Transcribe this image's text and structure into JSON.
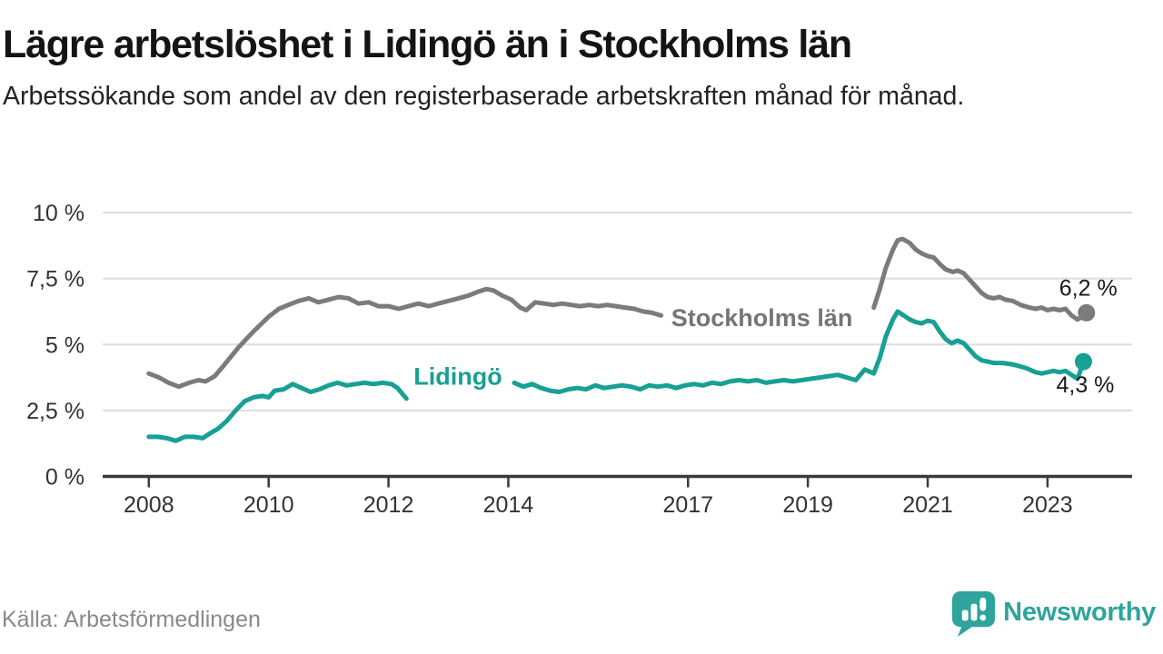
{
  "footer": {
    "source": "Källa: Arbetsförmedlingen",
    "brand": "Newsworthy"
  },
  "logo": {
    "icon": "bar-chart-speech-bubble",
    "color": "#2ea49c"
  },
  "chart_data": {
    "type": "line",
    "title": "Lägre arbetslöshet i Lidingö än i Stockholms län",
    "subtitle": "Arbetssökande som andel av den registerbaserade arbetskraften månad för månad.",
    "unit": "%",
    "xlabel": "",
    "ylabel": "",
    "ylim": [
      0,
      10
    ],
    "xlim": [
      2007.08,
      2024.42
    ],
    "grid": true,
    "legend_position": "inline-labels-on-lines",
    "colors": {
      "grid": "#dcdcdc",
      "axis": "#3a3a3a",
      "axis_text": "#333333",
      "end_label_text": "#1a1a1a",
      "background": "#ffffff"
    },
    "y_ticks": [
      {
        "value": 0,
        "label": "0 %"
      },
      {
        "value": 2.5,
        "label": "2,5 %"
      },
      {
        "value": 5,
        "label": "5 %"
      },
      {
        "value": 7.5,
        "label": "7,5 %"
      },
      {
        "value": 10,
        "label": "10 %"
      }
    ],
    "x_ticks": [
      {
        "year": 2008,
        "label": "2008"
      },
      {
        "year": 2010,
        "label": "2010"
      },
      {
        "year": 2012,
        "label": "2012"
      },
      {
        "year": 2014,
        "label": "2014"
      },
      {
        "year": 2017,
        "label": "2017"
      },
      {
        "year": 2019,
        "label": "2019"
      },
      {
        "year": 2021,
        "label": "2021"
      },
      {
        "year": 2023,
        "label": "2023"
      }
    ],
    "series": [
      {
        "name": "Stockholms län",
        "color": "#7b7b7b",
        "label_color": "#757575",
        "label_anchor": {
          "x": 2016.72,
          "y": 6.0
        },
        "end_label": {
          "text": "6,2 %",
          "value": 6.2,
          "position": "above"
        },
        "segments": [
          [
            [
              2008,
              3.9
            ],
            [
              2008.17,
              3.75
            ],
            [
              2008.33,
              3.55
            ],
            [
              2008.5,
              3.4
            ],
            [
              2008.67,
              3.55
            ],
            [
              2008.83,
              3.65
            ],
            [
              2008.95,
              3.6
            ],
            [
              2009.1,
              3.8
            ],
            [
              2009.25,
              4.2
            ],
            [
              2009.5,
              4.9
            ],
            [
              2009.75,
              5.5
            ],
            [
              2010,
              6.05
            ],
            [
              2010.17,
              6.35
            ],
            [
              2010.33,
              6.5
            ],
            [
              2010.5,
              6.65
            ],
            [
              2010.67,
              6.75
            ],
            [
              2010.83,
              6.6
            ],
            [
              2011,
              6.7
            ],
            [
              2011.17,
              6.8
            ],
            [
              2011.33,
              6.75
            ],
            [
              2011.5,
              6.55
            ],
            [
              2011.67,
              6.6
            ],
            [
              2011.83,
              6.45
            ],
            [
              2012,
              6.45
            ],
            [
              2012.17,
              6.35
            ],
            [
              2012.33,
              6.45
            ],
            [
              2012.5,
              6.55
            ],
            [
              2012.67,
              6.45
            ],
            [
              2012.83,
              6.55
            ],
            [
              2013,
              6.65
            ],
            [
              2013.17,
              6.75
            ],
            [
              2013.33,
              6.85
            ],
            [
              2013.5,
              7.0
            ],
            [
              2013.63,
              7.1
            ],
            [
              2013.75,
              7.05
            ],
            [
              2013.9,
              6.85
            ],
            [
              2014.05,
              6.7
            ],
            [
              2014.2,
              6.4
            ],
            [
              2014.3,
              6.3
            ],
            [
              2014.45,
              6.6
            ],
            [
              2014.6,
              6.55
            ],
            [
              2014.75,
              6.5
            ],
            [
              2014.9,
              6.55
            ],
            [
              2015.05,
              6.5
            ],
            [
              2015.2,
              6.45
            ],
            [
              2015.35,
              6.5
            ],
            [
              2015.5,
              6.45
            ],
            [
              2015.65,
              6.5
            ],
            [
              2015.8,
              6.45
            ],
            [
              2015.95,
              6.4
            ],
            [
              2016.1,
              6.35
            ],
            [
              2016.25,
              6.25
            ],
            [
              2016.4,
              6.2
            ],
            [
              2016.55,
              6.1
            ]
          ],
          [
            [
              2020.1,
              6.4
            ],
            [
              2020.2,
              7.1
            ],
            [
              2020.3,
              7.9
            ],
            [
              2020.42,
              8.6
            ],
            [
              2020.5,
              8.95
            ],
            [
              2020.58,
              9.0
            ],
            [
              2020.7,
              8.85
            ],
            [
              2020.8,
              8.6
            ],
            [
              2020.9,
              8.45
            ],
            [
              2021,
              8.35
            ],
            [
              2021.1,
              8.3
            ],
            [
              2021.2,
              8.05
            ],
            [
              2021.3,
              7.85
            ],
            [
              2021.42,
              7.75
            ],
            [
              2021.5,
              7.8
            ],
            [
              2021.6,
              7.7
            ],
            [
              2021.7,
              7.45
            ],
            [
              2021.8,
              7.2
            ],
            [
              2021.9,
              6.95
            ],
            [
              2022,
              6.8
            ],
            [
              2022.1,
              6.75
            ],
            [
              2022.2,
              6.8
            ],
            [
              2022.3,
              6.7
            ],
            [
              2022.42,
              6.65
            ],
            [
              2022.55,
              6.5
            ],
            [
              2022.7,
              6.4
            ],
            [
              2022.8,
              6.35
            ],
            [
              2022.9,
              6.4
            ],
            [
              2023,
              6.3
            ],
            [
              2023.1,
              6.35
            ],
            [
              2023.2,
              6.3
            ],
            [
              2023.3,
              6.35
            ],
            [
              2023.4,
              6.1
            ],
            [
              2023.5,
              5.95
            ],
            [
              2023.58,
              6.05
            ],
            [
              2023.65,
              6.2
            ]
          ]
        ]
      },
      {
        "name": "Lidingö",
        "color": "#17a093",
        "label_color": "#17a093",
        "label_anchor": {
          "x": 2012.42,
          "y": 3.78
        },
        "end_label": {
          "text": "4,3 %",
          "value": 4.3,
          "position": "below"
        },
        "segments": [
          [
            [
              2008,
              1.5
            ],
            [
              2008.15,
              1.5
            ],
            [
              2008.3,
              1.45
            ],
            [
              2008.45,
              1.35
            ],
            [
              2008.6,
              1.5
            ],
            [
              2008.75,
              1.5
            ],
            [
              2008.9,
              1.45
            ],
            [
              2009,
              1.6
            ],
            [
              2009.15,
              1.8
            ],
            [
              2009.3,
              2.1
            ],
            [
              2009.45,
              2.5
            ],
            [
              2009.6,
              2.85
            ],
            [
              2009.75,
              3.0
            ],
            [
              2009.9,
              3.05
            ],
            [
              2010,
              3.0
            ],
            [
              2010.1,
              3.25
            ],
            [
              2010.25,
              3.3
            ],
            [
              2010.4,
              3.5
            ],
            [
              2010.55,
              3.35
            ],
            [
              2010.7,
              3.2
            ],
            [
              2010.85,
              3.3
            ],
            [
              2011,
              3.45
            ],
            [
              2011.15,
              3.55
            ],
            [
              2011.3,
              3.45
            ],
            [
              2011.45,
              3.5
            ],
            [
              2011.6,
              3.55
            ],
            [
              2011.75,
              3.5
            ],
            [
              2011.9,
              3.55
            ],
            [
              2012.05,
              3.5
            ],
            [
              2012.15,
              3.35
            ],
            [
              2012.3,
              2.95
            ]
          ],
          [
            [
              2014.1,
              3.55
            ],
            [
              2014.25,
              3.4
            ],
            [
              2014.4,
              3.5
            ],
            [
              2014.55,
              3.35
            ],
            [
              2014.7,
              3.25
            ],
            [
              2014.85,
              3.2
            ],
            [
              2015,
              3.3
            ],
            [
              2015.15,
              3.35
            ],
            [
              2015.3,
              3.3
            ],
            [
              2015.45,
              3.45
            ],
            [
              2015.6,
              3.35
            ],
            [
              2015.75,
              3.4
            ],
            [
              2015.9,
              3.45
            ],
            [
              2016.05,
              3.4
            ],
            [
              2016.2,
              3.3
            ],
            [
              2016.35,
              3.45
            ],
            [
              2016.5,
              3.4
            ],
            [
              2016.65,
              3.45
            ],
            [
              2016.8,
              3.35
            ],
            [
              2016.95,
              3.45
            ],
            [
              2017.1,
              3.5
            ],
            [
              2017.25,
              3.45
            ],
            [
              2017.4,
              3.55
            ],
            [
              2017.55,
              3.5
            ],
            [
              2017.7,
              3.6
            ],
            [
              2017.85,
              3.65
            ],
            [
              2018,
              3.6
            ],
            [
              2018.15,
              3.65
            ],
            [
              2018.3,
              3.55
            ],
            [
              2018.45,
              3.6
            ],
            [
              2018.6,
              3.65
            ],
            [
              2018.75,
              3.6
            ],
            [
              2018.9,
              3.65
            ],
            [
              2019.05,
              3.7
            ],
            [
              2019.2,
              3.75
            ],
            [
              2019.35,
              3.8
            ],
            [
              2019.5,
              3.85
            ],
            [
              2019.65,
              3.75
            ],
            [
              2019.8,
              3.65
            ],
            [
              2019.95,
              4.05
            ],
            [
              2020.1,
              3.9
            ],
            [
              2020.2,
              4.5
            ],
            [
              2020.3,
              5.3
            ],
            [
              2020.42,
              5.95
            ],
            [
              2020.5,
              6.25
            ],
            [
              2020.6,
              6.1
            ],
            [
              2020.7,
              5.95
            ],
            [
              2020.8,
              5.85
            ],
            [
              2020.9,
              5.8
            ],
            [
              2021,
              5.9
            ],
            [
              2021.1,
              5.85
            ],
            [
              2021.2,
              5.5
            ],
            [
              2021.3,
              5.2
            ],
            [
              2021.4,
              5.05
            ],
            [
              2021.5,
              5.15
            ],
            [
              2021.6,
              5.05
            ],
            [
              2021.7,
              4.8
            ],
            [
              2021.8,
              4.55
            ],
            [
              2021.9,
              4.4
            ],
            [
              2022,
              4.35
            ],
            [
              2022.1,
              4.3
            ],
            [
              2022.25,
              4.3
            ],
            [
              2022.4,
              4.25
            ],
            [
              2022.5,
              4.2
            ],
            [
              2022.65,
              4.1
            ],
            [
              2022.8,
              3.95
            ],
            [
              2022.9,
              3.9
            ],
            [
              2023,
              3.95
            ],
            [
              2023.1,
              4.0
            ],
            [
              2023.2,
              3.95
            ],
            [
              2023.3,
              4.0
            ],
            [
              2023.4,
              3.85
            ],
            [
              2023.5,
              3.7
            ],
            [
              2023.6,
              4.35
            ]
          ]
        ]
      }
    ]
  }
}
